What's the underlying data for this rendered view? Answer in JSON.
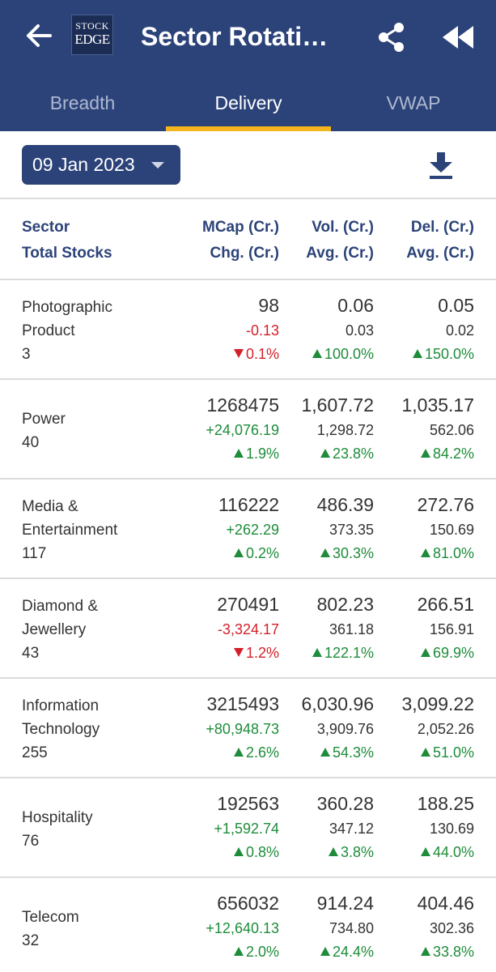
{
  "header": {
    "title": "Sector Rotati…",
    "logo_line1": "STOCK",
    "logo_line2": "EDGE",
    "back_icon": "arrow-left-icon",
    "share_icon": "share-icon",
    "rewind_icon": "rewind-icon"
  },
  "tabs": [
    {
      "label": "Breadth",
      "active": false
    },
    {
      "label": "Delivery",
      "active": true
    },
    {
      "label": "VWAP",
      "active": false
    }
  ],
  "date_selector": {
    "value": "09 Jan 2023"
  },
  "columns": {
    "sector": "Sector",
    "total_stocks": "Total Stocks",
    "mcap": "MCap (Cr.)",
    "chg": "Chg. (Cr.)",
    "vol": "Vol. (Cr.)",
    "vol_avg": "Avg. (Cr.)",
    "del": "Del. (Cr.)",
    "del_avg": "Avg. (Cr.)"
  },
  "rows": [
    {
      "name_lines": [
        "Photographic",
        "Product"
      ],
      "stocks": "3",
      "mcap": "98",
      "chg": "-0.13",
      "chg_dir": "neg",
      "mcap_pct": "0.1%",
      "mcap_dir": "down",
      "vol": "0.06",
      "vol_avg": "0.03",
      "vol_pct": "100.0%",
      "vol_dir": "up",
      "del": "0.05",
      "del_avg": "0.02",
      "del_pct": "150.0%",
      "del_dir": "up"
    },
    {
      "name_lines": [
        "Power"
      ],
      "stocks": "40",
      "mcap": "1268475",
      "chg": "+24,076.19",
      "chg_dir": "pos",
      "mcap_pct": "1.9%",
      "mcap_dir": "up",
      "vol": "1,607.72",
      "vol_avg": "1,298.72",
      "vol_pct": "23.8%",
      "vol_dir": "up",
      "del": "1,035.17",
      "del_avg": "562.06",
      "del_pct": "84.2%",
      "del_dir": "up"
    },
    {
      "name_lines": [
        "Media &",
        "Entertainment"
      ],
      "stocks": "117",
      "mcap": "116222",
      "chg": "+262.29",
      "chg_dir": "pos",
      "mcap_pct": "0.2%",
      "mcap_dir": "up",
      "vol": "486.39",
      "vol_avg": "373.35",
      "vol_pct": "30.3%",
      "vol_dir": "up",
      "del": "272.76",
      "del_avg": "150.69",
      "del_pct": "81.0%",
      "del_dir": "up"
    },
    {
      "name_lines": [
        "Diamond &",
        "Jewellery"
      ],
      "stocks": "43",
      "mcap": "270491",
      "chg": "-3,324.17",
      "chg_dir": "neg",
      "mcap_pct": "1.2%",
      "mcap_dir": "down",
      "vol": "802.23",
      "vol_avg": "361.18",
      "vol_pct": "122.1%",
      "vol_dir": "up",
      "del": "266.51",
      "del_avg": "156.91",
      "del_pct": "69.9%",
      "del_dir": "up"
    },
    {
      "name_lines": [
        "Information",
        "Technology"
      ],
      "stocks": "255",
      "mcap": "3215493",
      "chg": "+80,948.73",
      "chg_dir": "pos",
      "mcap_pct": "2.6%",
      "mcap_dir": "up",
      "vol": "6,030.96",
      "vol_avg": "3,909.76",
      "vol_pct": "54.3%",
      "vol_dir": "up",
      "del": "3,099.22",
      "del_avg": "2,052.26",
      "del_pct": "51.0%",
      "del_dir": "up"
    },
    {
      "name_lines": [
        "Hospitality"
      ],
      "stocks": "76",
      "mcap": "192563",
      "chg": "+1,592.74",
      "chg_dir": "pos",
      "mcap_pct": "0.8%",
      "mcap_dir": "up",
      "vol": "360.28",
      "vol_avg": "347.12",
      "vol_pct": "3.8%",
      "vol_dir": "up",
      "del": "188.25",
      "del_avg": "130.69",
      "del_pct": "44.0%",
      "del_dir": "up"
    },
    {
      "name_lines": [
        "Telecom"
      ],
      "stocks": "32",
      "mcap": "656032",
      "chg": "+12,640.13",
      "chg_dir": "pos",
      "mcap_pct": "2.0%",
      "mcap_dir": "up",
      "vol": "914.24",
      "vol_avg": "734.80",
      "vol_pct": "24.4%",
      "vol_dir": "up",
      "del": "404.46",
      "del_avg": "302.36",
      "del_pct": "33.8%",
      "del_dir": "up"
    }
  ],
  "colors": {
    "primary": "#2c4379",
    "accent": "#f5b51d",
    "positive": "#1e8c3a",
    "negative": "#d4202a"
  }
}
